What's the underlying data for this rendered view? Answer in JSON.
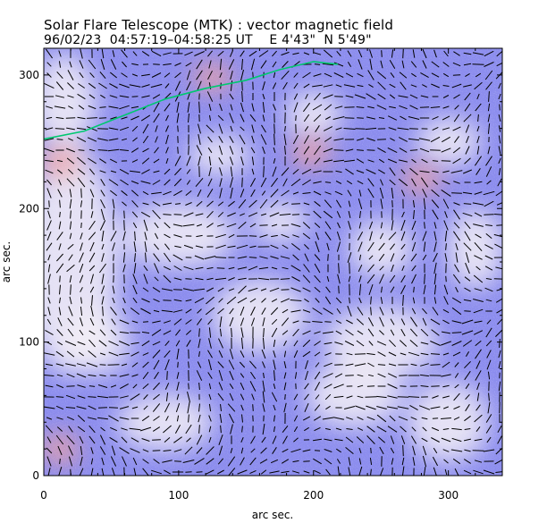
{
  "title": "Solar Flare Telescope (MTK) : vector magnetic field",
  "subtitle": "96/02/23  04:57:19–04:58:25 UT    E 4'43\"  N 5'49\"",
  "chart_data": {
    "type": "heatmap",
    "title": "Solar Flare Telescope (MTK) : vector magnetic field",
    "subtitle": "96/02/23  04:57:19–04:58:25 UT    E 4'43\"  N 5'49\"",
    "xlabel": "arc sec.",
    "ylabel": "arc sec.",
    "xlim": [
      0,
      340
    ],
    "ylim": [
      0,
      320
    ],
    "xticks": [
      0,
      100,
      200,
      300
    ],
    "yticks": [
      0,
      100,
      200,
      300
    ],
    "grid": false,
    "legend": "none",
    "colors": {
      "negative_polarity": "#7f80ef",
      "weak_field": "#f4f0f6",
      "positive_polarity": "#f0a0a0",
      "field_vectors": "#000000",
      "limb_line": "#00c870"
    },
    "positive_regions": [
      {
        "x": 125,
        "y": 298
      },
      {
        "x": 198,
        "y": 242
      },
      {
        "x": 280,
        "y": 222
      },
      {
        "x": 12,
        "y": 235
      },
      {
        "x": 12,
        "y": 20
      }
    ],
    "limb_curve": {
      "x": [
        0,
        30,
        60,
        90,
        120,
        150,
        175,
        200,
        218
      ],
      "y": [
        252,
        258,
        270,
        282,
        290,
        296,
        304,
        310,
        308
      ]
    }
  }
}
